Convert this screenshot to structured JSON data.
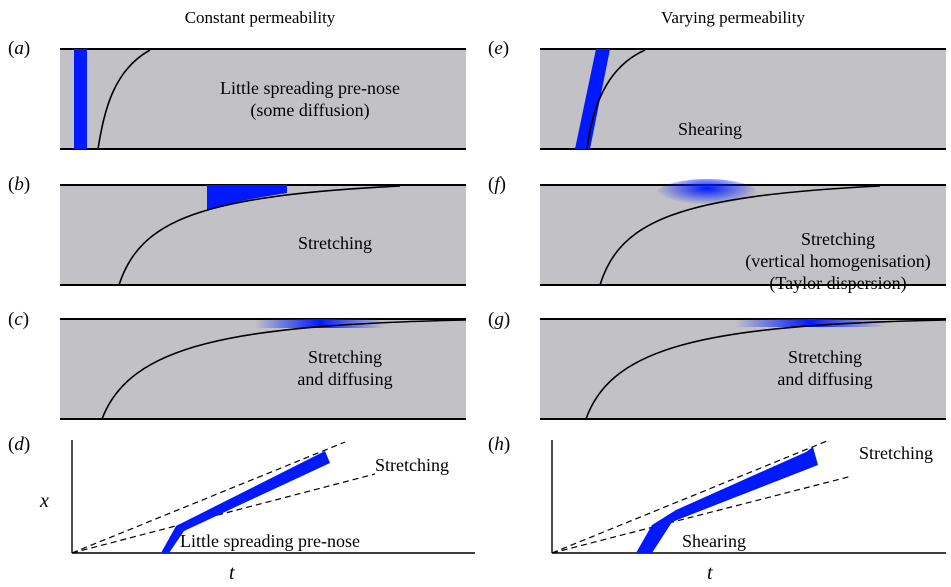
{
  "columns": {
    "left_title": "Constant permeability",
    "right_title": "Varying permeability"
  },
  "panels": {
    "a": {
      "label": "a",
      "text_lines": [
        "Little spreading pre-nose",
        "(some diffusion)"
      ]
    },
    "b": {
      "label": "b",
      "text_lines": [
        "Stretching"
      ]
    },
    "c": {
      "label": "c",
      "text_lines": [
        "Stretching",
        "and diffusing"
      ]
    },
    "d": {
      "label": "d",
      "annotation_upper": "Stretching",
      "annotation_lower": "Little spreading pre-nose",
      "ylabel": "x",
      "xlabel": "t"
    },
    "e": {
      "label": "e",
      "text_lines": [
        "Shearing"
      ]
    },
    "f": {
      "label": "f",
      "text_lines": [
        "Stretching",
        "(vertical homogenisation)",
        "(Taylor dispersion)"
      ]
    },
    "g": {
      "label": "g",
      "text_lines": [
        "Stretching",
        "and diffusing"
      ]
    },
    "h": {
      "label": "h",
      "annotation_upper": "Stretching",
      "annotation_lower": "Shearing",
      "ylabel": "",
      "xlabel": "t"
    }
  },
  "colors": {
    "layer_fill": "#c2c1c6",
    "tracer": "#0019ff",
    "line": "#000000"
  }
}
